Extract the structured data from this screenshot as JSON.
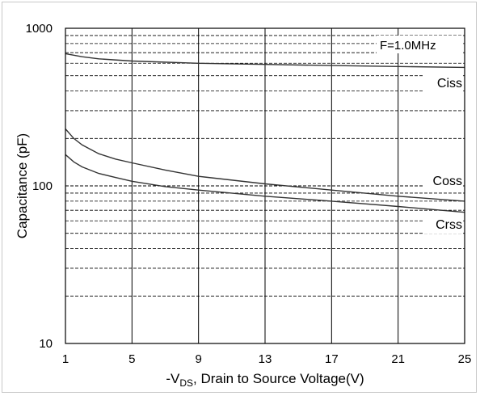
{
  "chart_data": {
    "type": "line",
    "title": "",
    "annotation": "F=1.0MHz",
    "xlabel": {
      "prefix": "-V",
      "subscript": "DS",
      "rest": ", Drain to Source Voltage(V)"
    },
    "ylabel": "Capacitance (pF)",
    "xlim": [
      1,
      25
    ],
    "ylim": [
      10,
      1000
    ],
    "yscale": "log",
    "x_ticks": [
      1,
      5,
      9,
      13,
      17,
      21,
      25
    ],
    "x_tick_labels": [
      "1",
      "5",
      "9",
      "13",
      "17",
      "21",
      "25"
    ],
    "y_ticks": [
      10,
      100,
      1000
    ],
    "y_tick_labels": [
      "10",
      "100",
      "1000"
    ],
    "grid": true,
    "series": [
      {
        "name": "Ciss",
        "x": [
          1,
          2,
          3,
          5,
          9,
          13,
          17,
          21,
          25
        ],
        "y": [
          690,
          660,
          640,
          620,
          600,
          590,
          580,
          572,
          565
        ]
      },
      {
        "name": "Coss",
        "x": [
          1,
          1.5,
          2,
          3,
          4,
          5,
          7,
          9,
          13,
          17,
          21,
          25
        ],
        "y": [
          230,
          200,
          182,
          160,
          148,
          140,
          126,
          115,
          103,
          94,
          86,
          80
        ]
      },
      {
        "name": "Crss",
        "x": [
          1,
          1.5,
          2,
          3,
          4,
          5,
          7,
          9,
          13,
          17,
          21,
          25
        ],
        "y": [
          158,
          142,
          132,
          120,
          113,
          107,
          99,
          94,
          86,
          80,
          74,
          68
        ]
      }
    ]
  }
}
